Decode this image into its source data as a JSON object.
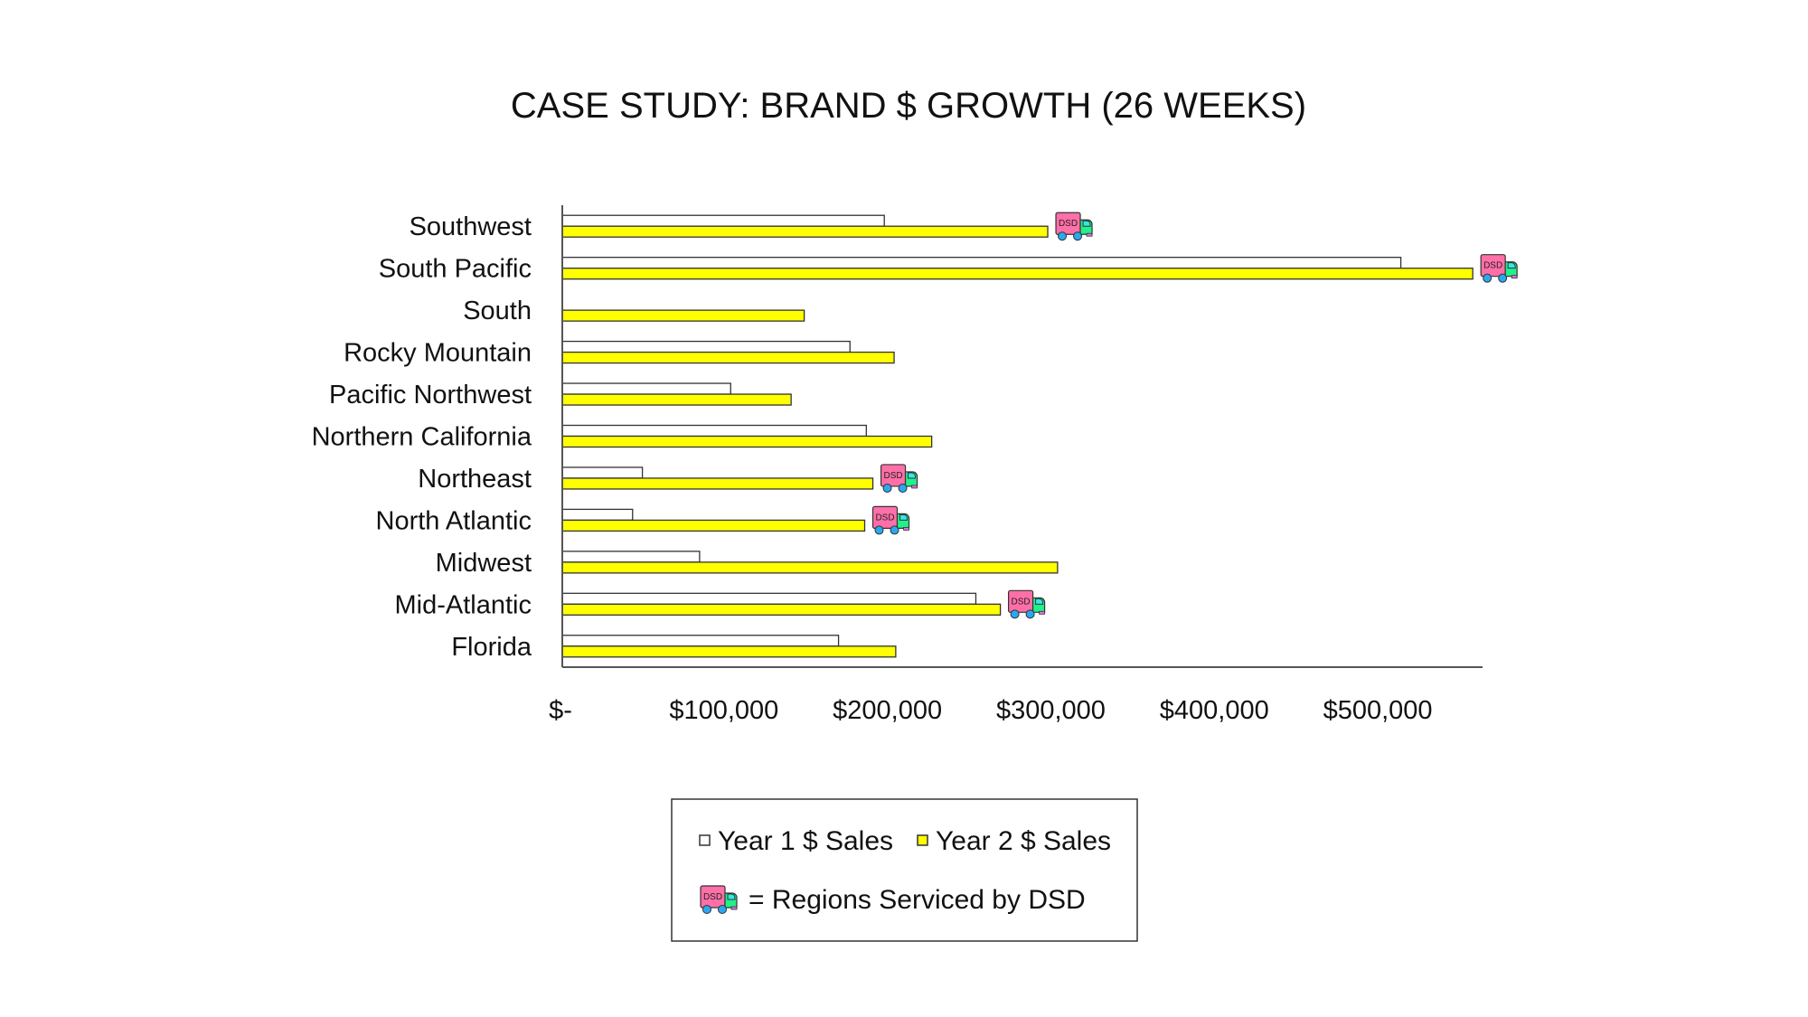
{
  "chart_data": {
    "type": "bar",
    "orientation": "horizontal",
    "title": "CASE STUDY: BRAND $ GROWTH (26 WEEKS)",
    "xlabel": "",
    "ylabel": "",
    "xlim": [
      0,
      563000
    ],
    "x_ticks": [
      0,
      100000,
      200000,
      300000,
      400000,
      500000
    ],
    "x_tick_labels": [
      "$-",
      "$100,000",
      "$200,000",
      "$300,000",
      "$400,000",
      "$500,000"
    ],
    "grid": false,
    "categories": [
      "Southwest",
      "South Pacific",
      "South",
      "Rocky Mountain",
      "Pacific Northwest",
      "Northern California",
      "Northeast",
      "North Atlantic",
      "Midwest",
      "Mid-Atlantic",
      "Florida"
    ],
    "series": [
      {
        "name": "Year 1 $ Sales",
        "color": "#ffffff",
        "values": [
          197000,
          513000,
          0,
          176000,
          103000,
          186000,
          49000,
          43000,
          84000,
          253000,
          169000
        ]
      },
      {
        "name": "Year 2 $ Sales",
        "color": "#ffff00",
        "values": [
          297000,
          557000,
          148000,
          203000,
          140000,
          226000,
          190000,
          185000,
          303000,
          268000,
          204000
        ]
      }
    ],
    "dsd_regions": [
      true,
      true,
      false,
      false,
      false,
      false,
      true,
      true,
      false,
      true,
      false
    ],
    "legend": {
      "placement": "bottom-center",
      "entries": [
        "Year 1 $ Sales",
        "Year 2 $ Sales"
      ],
      "dsd_note": "= Regions Serviced by DSD"
    }
  },
  "icons": {
    "dsd_truck": {
      "name": "dsd-truck-icon",
      "label": "DSD",
      "body_color": "#ff6fa8",
      "cab_color": "#22f08a",
      "window_color": "#33e8e8",
      "wheel_color": "#29a8f0",
      "bumper_color": "#e070e0"
    }
  },
  "colors": {
    "axis": "#555555",
    "bar_outline": "#333333"
  }
}
